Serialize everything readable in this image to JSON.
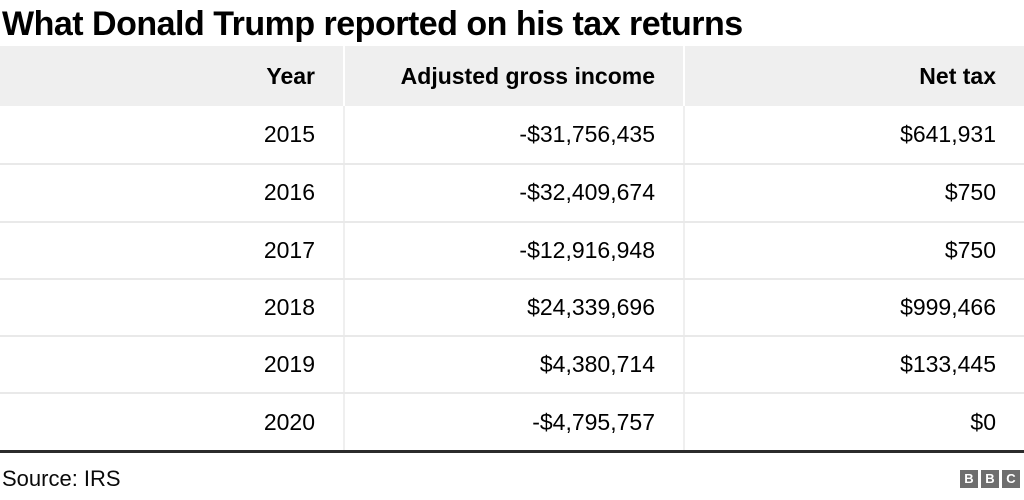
{
  "title": "What Donald Trump reported on his tax returns",
  "table": {
    "columns": [
      "Year",
      "Adjusted gross income",
      "Net tax"
    ],
    "rows": [
      [
        "2015",
        "-$31,756,435",
        "$641,931"
      ],
      [
        "2016",
        "-$32,409,674",
        "$750"
      ],
      [
        "2017",
        "-$12,916,948",
        "$750"
      ],
      [
        "2018",
        "$24,339,696",
        "$999,466"
      ],
      [
        "2019",
        "$4,380,714",
        "$133,445"
      ],
      [
        "2020",
        "-$4,795,757",
        "$0"
      ]
    ]
  },
  "footer": {
    "source": "Source: IRS",
    "logo": [
      "B",
      "B",
      "C"
    ]
  },
  "colors": {
    "header_bg": "#efefef",
    "row_separator": "#e9e9e9",
    "bottom_rule": "#2b2b2b",
    "logo_grey": "#6e6e6e",
    "text": "#000000"
  },
  "chart_data": {
    "type": "table",
    "title": "What Donald Trump reported on his tax returns",
    "columns": [
      "Year",
      "Adjusted gross income",
      "Net tax"
    ],
    "rows": [
      [
        2015,
        -31756435,
        641931
      ],
      [
        2016,
        -32409674,
        750
      ],
      [
        2017,
        -12916948,
        750
      ],
      [
        2018,
        24339696,
        999466
      ],
      [
        2019,
        4380714,
        133445
      ],
      [
        2020,
        -4795757,
        0
      ]
    ],
    "source": "IRS",
    "layout_hints": {
      "alignment": "right",
      "header_background": "#efefef",
      "grid": "light horizontal and vertical separators"
    }
  }
}
